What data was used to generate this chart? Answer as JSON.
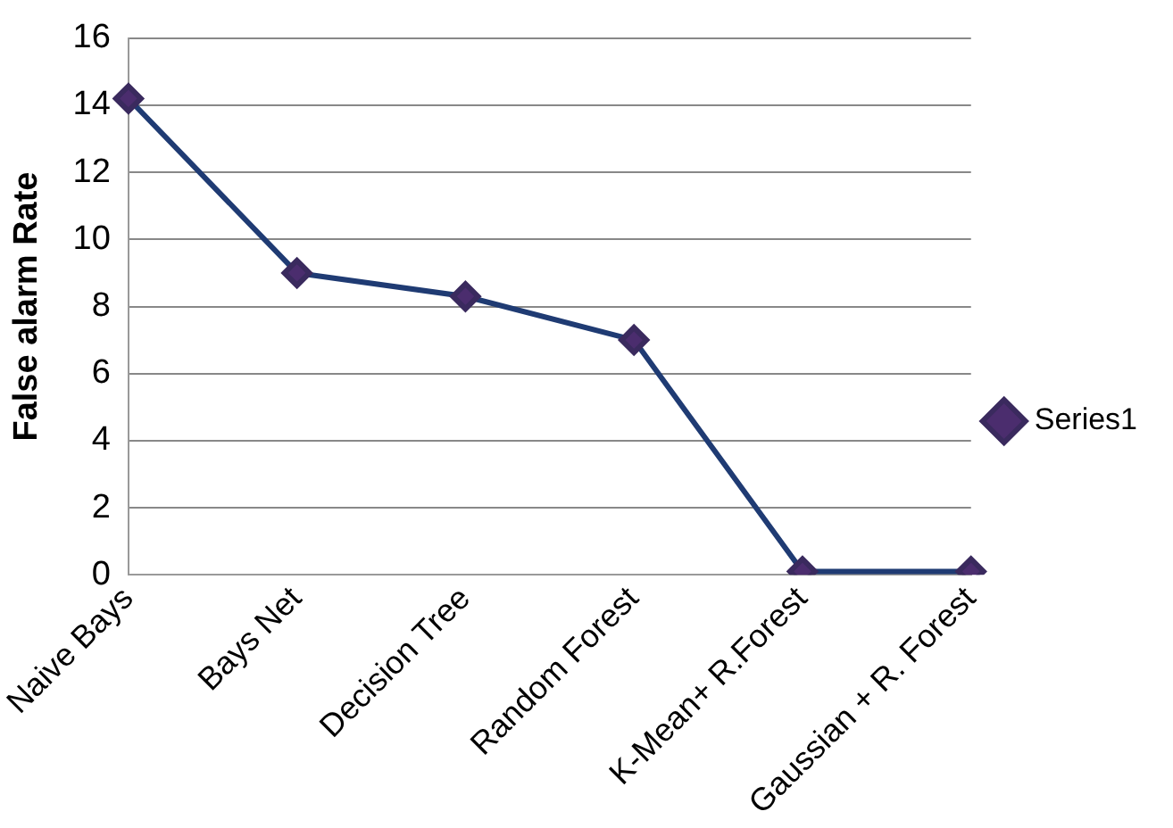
{
  "chart_data": {
    "type": "line",
    "ylabel": "False alarm Rate",
    "categories": [
      "Naive Bays",
      "Bays Net",
      "Decision Tree",
      "Random Forest",
      "K-Mean+ R.Forest",
      "Gaussian + R. Forest"
    ],
    "series": [
      {
        "name": "Series1",
        "color": "#1f3b73",
        "values": [
          14.2,
          9,
          8.3,
          7,
          0.1,
          0.1
        ]
      }
    ],
    "ylim": [
      0,
      16
    ],
    "yticks": [
      0,
      2,
      4,
      6,
      8,
      10,
      12,
      14,
      16
    ],
    "grid": "y",
    "legend": "right",
    "marker": "diamond",
    "line_style": "solid"
  }
}
